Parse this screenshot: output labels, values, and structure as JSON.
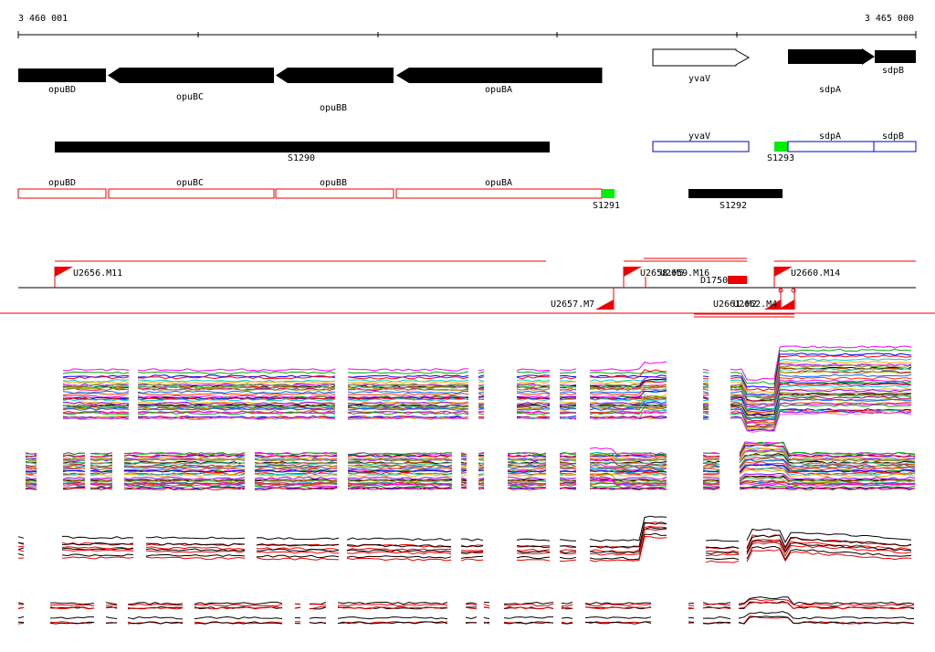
{
  "ruler": {
    "start_label": "3 460 001",
    "end_label": "3 465 000"
  },
  "genes_top": [
    {
      "name": "opuBD",
      "strand": "-",
      "fill": "black"
    },
    {
      "name": "opuBC",
      "strand": "-",
      "fill": "black"
    },
    {
      "name": "opuBB",
      "strand": "-",
      "fill": "black"
    },
    {
      "name": "opuBA",
      "strand": "-",
      "fill": "black"
    },
    {
      "name": "yvaV",
      "strand": "+",
      "fill": "white"
    },
    {
      "name": "sdpA",
      "strand": "+",
      "fill": "black"
    },
    {
      "name": "sdpB",
      "strand": "+",
      "fill": "black"
    }
  ],
  "segments": [
    {
      "name": "S1290",
      "color": "#000000"
    },
    {
      "name": "S1293",
      "color": "#00ee00"
    },
    {
      "name": "S1291",
      "color": "#00ee00"
    },
    {
      "name": "S1292",
      "color": "#000000"
    }
  ],
  "blue_boxes": [
    {
      "name": "yvaV"
    },
    {
      "name": "sdpA"
    },
    {
      "name": "sdpB"
    }
  ],
  "red_boxes": [
    {
      "name": "opuBD"
    },
    {
      "name": "opuBC"
    },
    {
      "name": "opuBB"
    },
    {
      "name": "opuBA"
    }
  ],
  "upshifts": [
    {
      "name": "U2656.M11"
    },
    {
      "name": "U2658.M5"
    },
    {
      "name": "U2659.M16"
    },
    {
      "name": "U2660.M14"
    },
    {
      "name": "U2657.M7"
    },
    {
      "name": "U2661.M2"
    },
    {
      "name": "U2662.M4"
    }
  ],
  "downshift": {
    "name": "D1750"
  },
  "colors": {
    "gene": "#000000",
    "blue_outline": "#0000cc",
    "red": "#ee0000",
    "green": "#00ee00"
  }
}
